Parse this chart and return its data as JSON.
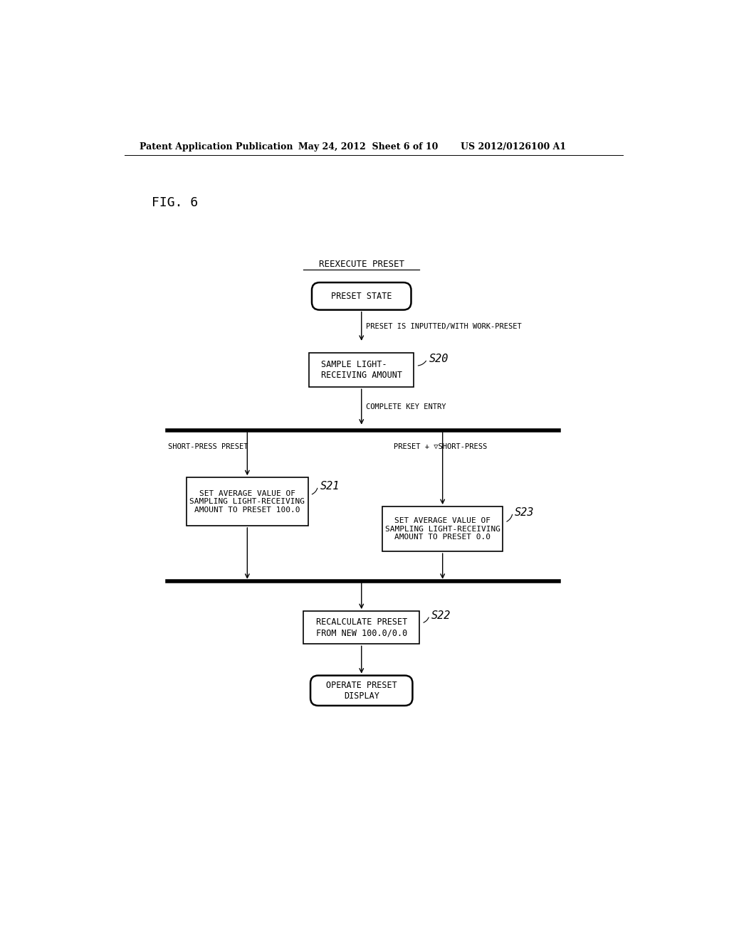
{
  "bg_color": "#ffffff",
  "header_left": "Patent Application Publication",
  "header_mid": "May 24, 2012  Sheet 6 of 10",
  "header_right": "US 2012/0126100 A1",
  "fig_label": "FIG. 6",
  "title_text": "REEXECUTE PRESET",
  "node_preset_state": "PRESET STATE",
  "node_sample": "SAMPLE LIGHT-\nRECEIVING AMOUNT",
  "node_s21": "SET AVERAGE VALUE OF\nSAMPLING LIGHT-RECEIVING\nAMOUNT TO PRESET 100.0",
  "node_s23": "SET AVERAGE VALUE OF\nSAMPLING LIGHT-RECEIVING\nAMOUNT TO PRESET 0.0",
  "node_s22": "RECALCULATE PRESET\nFROM NEW 100.0/0.0",
  "node_operate": "OPERATE PRESET\nDISPLAY",
  "label_s20": "S20",
  "label_s21": "S21",
  "label_s22": "S22",
  "label_s23": "S23",
  "arrow_label1": "PRESET IS INPUTTED/WITH WORK-PRESET",
  "arrow_label2": "COMPLETE KEY ENTRY",
  "arrow_label3": "SHORT-PRESS PRESET",
  "arrow_label4": "PRESET + ▽SHORT-PRESS",
  "font_size_header": 9,
  "font_size_node": 8.5,
  "font_size_label": 9,
  "font_size_arrow": 7.5,
  "font_size_fig": 13,
  "font_size_snum": 11
}
